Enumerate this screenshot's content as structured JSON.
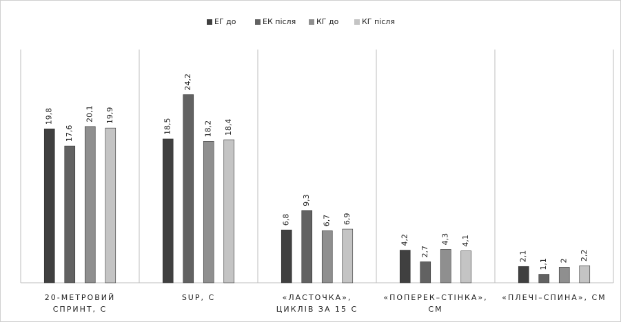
{
  "chart_data": {
    "type": "bar",
    "categories": [
      "20-МЕТРОВИЙ СПРИНТ, С",
      "SUP, С",
      "«ЛАСТОЧКА», ЦИКЛІВ ЗА 15 С",
      "«ПОПЕРЕК–СТІНКА», СМ",
      "«ПЛЕЧІ–СПИНА», СМ"
    ],
    "series": [
      {
        "name": "ЕГ до",
        "color": "#404040",
        "values": [
          19.8,
          18.5,
          6.8,
          4.2,
          2.1
        ],
        "value_labels": [
          "19,8",
          "18,5",
          "6,8",
          "4,2",
          "2,1"
        ]
      },
      {
        "name": "ЕК після",
        "color": "#626262",
        "values": [
          17.6,
          24.2,
          9.3,
          2.7,
          1.1
        ],
        "value_labels": [
          "17,6",
          "24,2",
          "9,3",
          "2,7",
          "1,1"
        ]
      },
      {
        "name": "КГ до",
        "color": "#8f8f8f",
        "values": [
          20.1,
          18.2,
          6.7,
          4.3,
          2
        ],
        "value_labels": [
          "20,1",
          "18,2",
          "6,7",
          "4,3",
          "2"
        ]
      },
      {
        "name": "КГ після",
        "color": "#c4c4c4",
        "values": [
          19.9,
          18.4,
          6.9,
          4.1,
          2.2
        ],
        "value_labels": [
          "19,9",
          "18,4",
          "6,9",
          "4,1",
          "2,2"
        ]
      }
    ],
    "ylim": [
      0,
      30
    ]
  }
}
